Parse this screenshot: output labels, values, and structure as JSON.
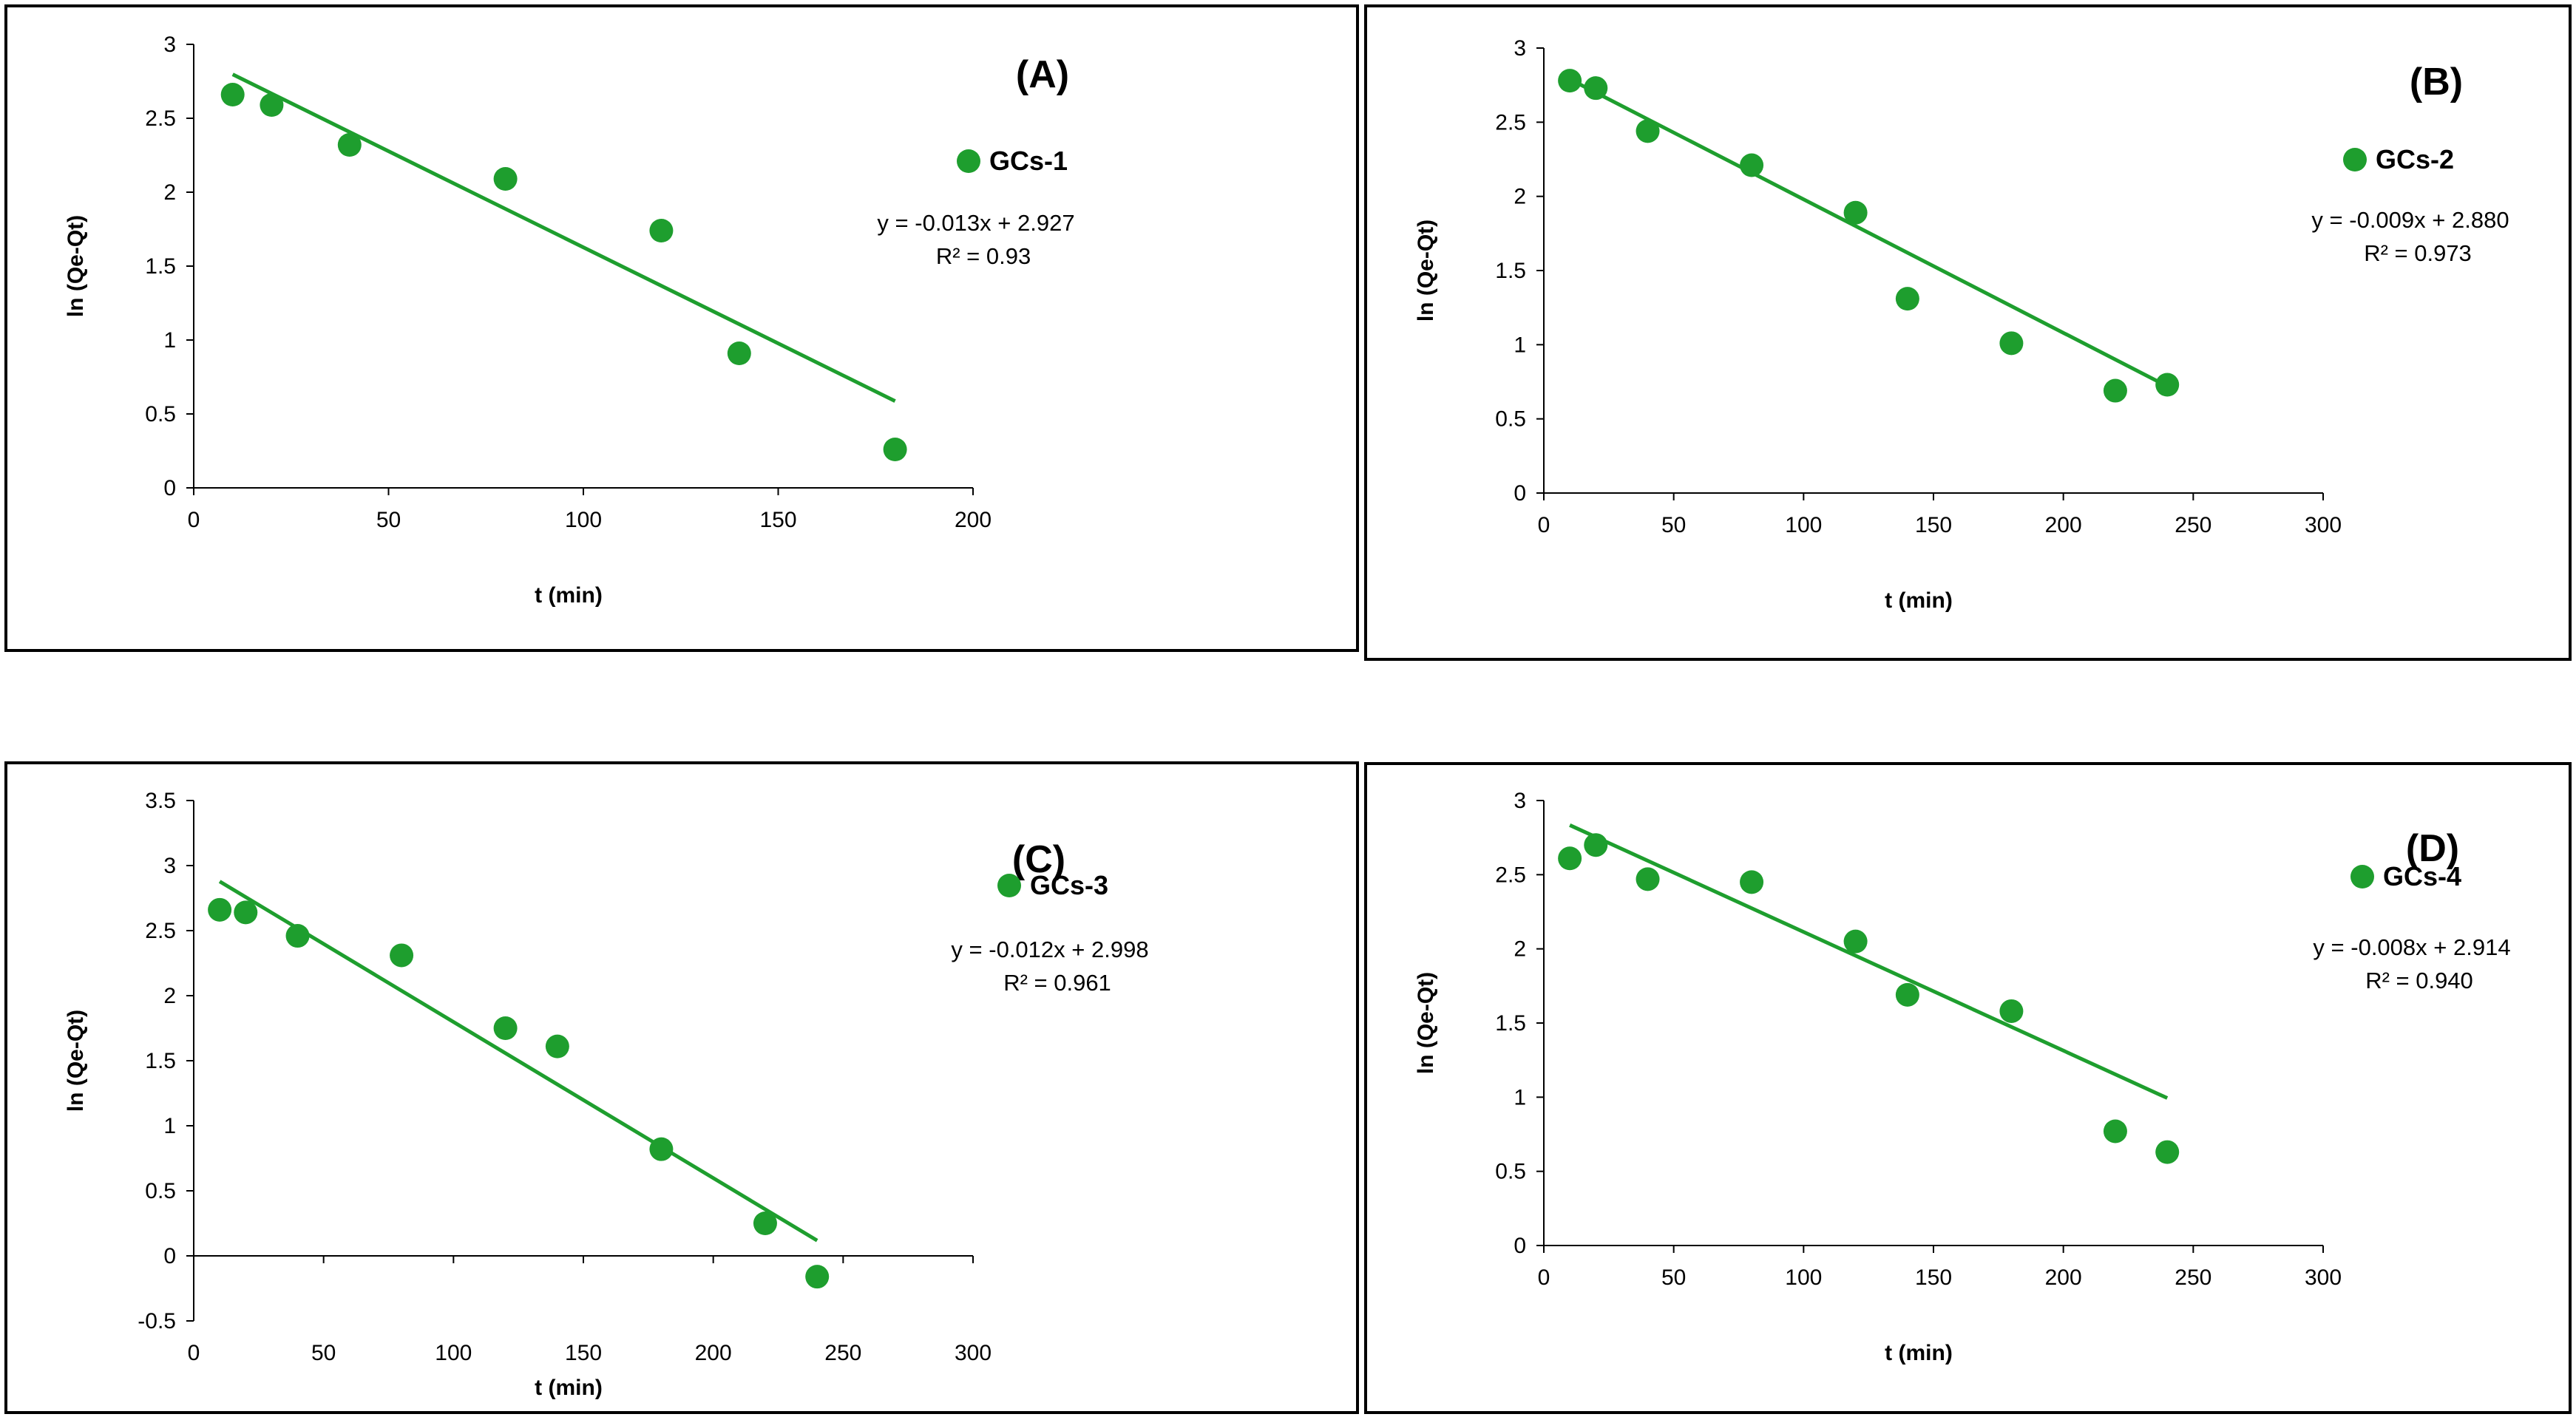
{
  "chart_data": [
    {
      "type": "scatter",
      "panel": "(A)",
      "xlabel": "t (min)",
      "ylabel": "ln (Qe-Qt)",
      "xlim": [
        0,
        200
      ],
      "ylim": [
        0,
        3
      ],
      "xticks": [
        "0",
        "50",
        "100",
        "150",
        "200"
      ],
      "yticks": [
        "0",
        "0.5",
        "1",
        "1.5",
        "2",
        "2.5",
        "3"
      ],
      "series": [
        {
          "name": "GCs-1",
          "color": "#1e9e2e",
          "x": [
            10,
            20,
            40,
            80,
            120,
            140,
            180
          ],
          "y": [
            2.66,
            2.59,
            2.32,
            2.09,
            1.74,
            0.91,
            0.26
          ]
        }
      ],
      "trendline": {
        "slope": -0.013,
        "intercept": 2.927,
        "x_range": [
          10,
          180
        ]
      },
      "equation": "y = -0.013x + 2.927",
      "r_squared": "R² = 0.93"
    },
    {
      "type": "scatter",
      "panel": "(B)",
      "xlabel": "t (min)",
      "ylabel": "ln (Qe-Qt)",
      "xlim": [
        0,
        300
      ],
      "ylim": [
        0,
        3
      ],
      "xticks": [
        "0",
        "50",
        "100",
        "150",
        "200",
        "250",
        "300"
      ],
      "yticks": [
        "0",
        "0.5",
        "1",
        "1.5",
        "2",
        "2.5",
        "3"
      ],
      "series": [
        {
          "name": "GCs-2",
          "color": "#1e9e2e",
          "x": [
            10,
            20,
            40,
            80,
            120,
            140,
            180,
            220,
            240
          ],
          "y": [
            2.78,
            2.73,
            2.44,
            2.21,
            1.89,
            1.31,
            1.01,
            0.69,
            0.73
          ]
        }
      ],
      "trendline": {
        "slope": -0.009,
        "intercept": 2.88,
        "x_range": [
          10,
          240
        ]
      },
      "equation": "y = -0.009x + 2.880",
      "r_squared": "R² = 0.973"
    },
    {
      "type": "scatter",
      "panel": "(C)",
      "xlabel": "t (min)",
      "ylabel": "ln (Qe-Qt)",
      "xlim": [
        0,
        300
      ],
      "ylim": [
        -0.5,
        3.5
      ],
      "xticks": [
        "0",
        "50",
        "100",
        "150",
        "200",
        "250",
        "300"
      ],
      "yticks": [
        "-0.5",
        "0",
        "0.5",
        "1",
        "1.5",
        "2",
        "2.5",
        "3",
        "3.5"
      ],
      "series": [
        {
          "name": "GCs-3",
          "color": "#1e9e2e",
          "x": [
            10,
            20,
            40,
            80,
            120,
            140,
            180,
            220,
            240
          ],
          "y": [
            2.66,
            2.64,
            2.46,
            2.31,
            1.75,
            1.61,
            0.82,
            0.25,
            -0.16
          ]
        }
      ],
      "trendline": {
        "slope": -0.012,
        "intercept": 2.998,
        "x_range": [
          10,
          240
        ]
      },
      "equation": "y = -0.012x + 2.998",
      "r_squared": "R² = 0.961"
    },
    {
      "type": "scatter",
      "panel": "(D)",
      "xlabel": "t (min)",
      "ylabel": "ln (Qe-Qt)",
      "xlim": [
        0,
        300
      ],
      "ylim": [
        0,
        3
      ],
      "xticks": [
        "0",
        "50",
        "100",
        "150",
        "200",
        "250",
        "300"
      ],
      "yticks": [
        "0",
        "0.5",
        "1",
        "1.5",
        "2",
        "2.5",
        "3"
      ],
      "series": [
        {
          "name": "GCs-4",
          "color": "#1e9e2e",
          "x": [
            10,
            20,
            40,
            80,
            120,
            140,
            180,
            220,
            240
          ],
          "y": [
            2.61,
            2.7,
            2.47,
            2.45,
            2.05,
            1.69,
            1.58,
            0.77,
            0.63
          ]
        }
      ],
      "trendline": {
        "slope": -0.008,
        "intercept": 2.914,
        "x_range": [
          10,
          240
        ]
      },
      "equation": "y = -0.008x + 2.914",
      "r_squared": "R² = 0.940"
    }
  ]
}
